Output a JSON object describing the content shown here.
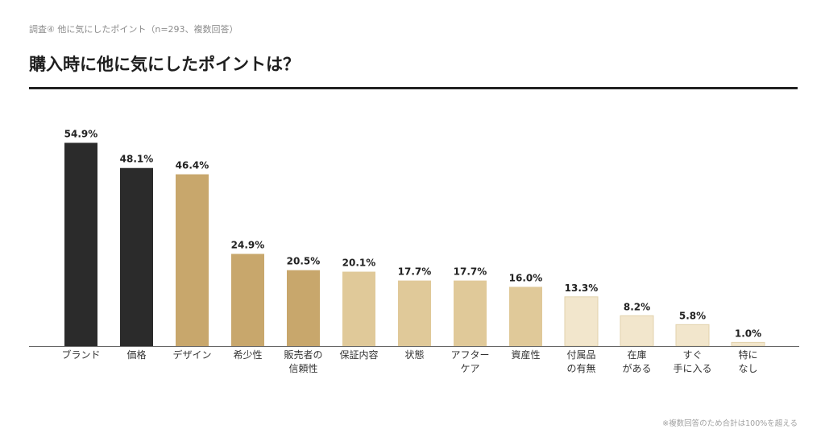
{
  "header": {
    "subtitle": "調査④ 他に気にしたポイント（n=293、複数回答）",
    "title": "購入時に他に気にしたポイントは？"
  },
  "footnote": "※複数回答のため合計は100%を超える",
  "chart_data": {
    "type": "bar",
    "title": "購入時に他に気にしたポイントは？",
    "xlabel": "",
    "ylabel": "",
    "unit": "%",
    "ylim": [
      0,
      60
    ],
    "grid": false,
    "categories": [
      [
        "ブランド"
      ],
      [
        "価格"
      ],
      [
        "デザイン"
      ],
      [
        "希少性"
      ],
      [
        "販売者の",
        "信頼性"
      ],
      [
        "保証内容"
      ],
      [
        "状態"
      ],
      [
        "アフター",
        "ケア"
      ],
      [
        "資産性"
      ],
      [
        "付属品",
        "の有無"
      ],
      [
        "在庫",
        "がある"
      ],
      [
        "すぐ",
        "手に入る"
      ],
      [
        "特に",
        "なし"
      ]
    ],
    "values": [
      54.9,
      48.1,
      46.4,
      24.9,
      20.5,
      20.1,
      17.7,
      17.7,
      16.0,
      13.3,
      8.2,
      5.8,
      1.0
    ],
    "labels": [
      "54.9%",
      "48.1%",
      "46.4%",
      "24.9%",
      "20.5%",
      "20.1%",
      "17.7%",
      "17.7%",
      "16.0%",
      "13.3%",
      "8.2%",
      "5.8%",
      "1.0%"
    ],
    "colors": [
      "#2b2b2b",
      "#2b2b2b",
      "#c8a76c",
      "#c8a76c",
      "#c8a76c",
      "#e0c999",
      "#e0c999",
      "#e0c999",
      "#e0c999",
      "#f2e6cc",
      "#f2e6cc",
      "#f2e6cc",
      "#f2e6cc"
    ],
    "axis_color": "#666666"
  }
}
